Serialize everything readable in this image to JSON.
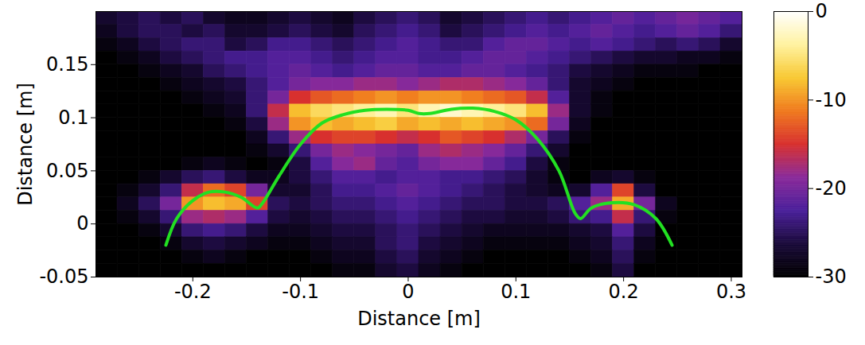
{
  "chart_data": {
    "type": "heatmap",
    "x_label": "Distance [m]",
    "y_label": "Distance [m]",
    "xlim": [
      -0.29,
      0.31
    ],
    "ylim": [
      -0.05,
      0.2
    ],
    "xticks": [
      -0.2,
      -0.1,
      0,
      0.1,
      0.2,
      0.3
    ],
    "yticks": [
      -0.05,
      0,
      0.05,
      0.1,
      0.15
    ],
    "x": [
      -0.28,
      -0.26,
      -0.24,
      -0.22,
      -0.2,
      -0.18,
      -0.16,
      -0.14,
      -0.12,
      -0.1,
      -0.08,
      -0.06,
      -0.04,
      -0.02,
      0,
      0.02,
      0.04,
      0.06,
      0.08,
      0.1,
      0.12,
      0.14,
      0.16,
      0.18,
      0.2,
      0.22,
      0.24,
      0.26,
      0.28,
      0.3
    ],
    "y": [
      0.19375,
      0.18125,
      0.16875,
      0.15625,
      0.14375,
      0.13125,
      0.11875,
      0.10625,
      0.09375,
      0.08125,
      0.06875,
      0.05625,
      0.04375,
      0.03125,
      0.01875,
      0.00625,
      -0.00625,
      -0.01875,
      -0.03125,
      -0.04375
    ],
    "values": [
      [
        -27,
        -26,
        -25,
        -26,
        -25,
        -27,
        -28,
        -28,
        -27,
        -26,
        -27,
        -28,
        -26,
        -25,
        -24,
        -25,
        -27,
        -26,
        -25,
        -24,
        -23,
        -24,
        -23,
        -22,
        -21,
        -22,
        -21,
        -20,
        -21,
        -22
      ],
      [
        -28,
        -26,
        -25,
        -25,
        -26,
        -25,
        -27,
        -27,
        -26,
        -25,
        -26,
        -27,
        -25,
        -24,
        -23,
        -24,
        -26,
        -25,
        -24,
        -23,
        -22,
        -23,
        -22,
        -21,
        -22,
        -23,
        -22,
        -21,
        -22,
        -24
      ],
      [
        -29,
        -28,
        -26,
        -25,
        -24,
        -24,
        -26,
        -25,
        -23,
        -23,
        -24,
        -25,
        -24,
        -23,
        -22,
        -23,
        -24,
        -24,
        -22,
        -21,
        -21,
        -22,
        -23,
        -22,
        -23,
        -24,
        -25,
        -24,
        -25,
        -27
      ],
      [
        -30,
        -29,
        -28,
        -26,
        -25,
        -24,
        -23,
        -23,
        -22,
        -22,
        -23,
        -24,
        -23,
        -22,
        -22,
        -23,
        -23,
        -22,
        -21,
        -21,
        -22,
        -23,
        -24,
        -25,
        -26,
        -27,
        -27,
        -28,
        -28,
        -29
      ],
      [
        -30,
        -30,
        -29,
        -28,
        -27,
        -25,
        -24,
        -23,
        -22,
        -21,
        -22,
        -23,
        -22,
        -21,
        -21,
        -22,
        -22,
        -21,
        -21,
        -22,
        -23,
        -24,
        -26,
        -27,
        -28,
        -29,
        -29,
        -29,
        -30,
        -30
      ],
      [
        -30,
        -30,
        -30,
        -29,
        -28,
        -27,
        -26,
        -24,
        -22,
        -20,
        -19,
        -19,
        -18,
        -18,
        -19,
        -18,
        -17,
        -17,
        -18,
        -19,
        -21,
        -24,
        -27,
        -28,
        -29,
        -30,
        -30,
        -30,
        -30,
        -30
      ],
      [
        -30,
        -30,
        -30,
        -30,
        -29,
        -28,
        -27,
        -24,
        -20,
        -15,
        -13,
        -12,
        -11,
        -10,
        -11,
        -10,
        -10,
        -11,
        -12,
        -13,
        -16,
        -22,
        -27,
        -29,
        -30,
        -30,
        -30,
        -30,
        -30,
        -30
      ],
      [
        -30,
        -30,
        -30,
        -30,
        -30,
        -29,
        -28,
        -24,
        -16,
        -8,
        -6,
        -5,
        -4,
        -3,
        -5,
        -3,
        -2,
        -3,
        -4,
        -5,
        -8,
        -18,
        -27,
        -29,
        -30,
        -30,
        -30,
        -30,
        -30,
        -30
      ],
      [
        -30,
        -30,
        -30,
        -30,
        -30,
        -30,
        -29,
        -26,
        -18,
        -10,
        -8,
        -9,
        -8,
        -7,
        -9,
        -8,
        -9,
        -8,
        -9,
        -10,
        -12,
        -20,
        -28,
        -30,
        -30,
        -30,
        -30,
        -30,
        -30,
        -30
      ],
      [
        -30,
        -30,
        -30,
        -30,
        -30,
        -30,
        -30,
        -28,
        -24,
        -18,
        -15,
        -14,
        -14,
        -15,
        -16,
        -15,
        -13,
        -14,
        -15,
        -17,
        -20,
        -25,
        -29,
        -30,
        -30,
        -30,
        -30,
        -30,
        -30,
        -30
      ],
      [
        -30,
        -30,
        -30,
        -30,
        -30,
        -30,
        -30,
        -29,
        -27,
        -24,
        -20,
        -18,
        -19,
        -20,
        -21,
        -18,
        -17,
        -18,
        -19,
        -21,
        -24,
        -27,
        -30,
        -30,
        -30,
        -30,
        -30,
        -30,
        -30,
        -30
      ],
      [
        -30,
        -30,
        -30,
        -30,
        -29,
        -28,
        -29,
        -30,
        -29,
        -26,
        -22,
        -19,
        -18,
        -21,
        -22,
        -20,
        -19,
        -19,
        -21,
        -23,
        -26,
        -29,
        -30,
        -30,
        -30,
        -30,
        -30,
        -30,
        -30,
        -30
      ],
      [
        -30,
        -30,
        -29,
        -27,
        -25,
        -24,
        -26,
        -28,
        -28,
        -26,
        -24,
        -22,
        -22,
        -23,
        -22,
        -22,
        -23,
        -23,
        -24,
        -25,
        -27,
        -29,
        -30,
        -28,
        -27,
        -29,
        -30,
        -30,
        -30,
        -30
      ],
      [
        -30,
        -29,
        -27,
        -24,
        -16,
        -12,
        -14,
        -20,
        -27,
        -27,
        -25,
        -23,
        -23,
        -22,
        -21,
        -22,
        -23,
        -24,
        -25,
        -26,
        -27,
        -28,
        -27,
        -22,
        -14,
        -26,
        -30,
        -30,
        -30,
        -30
      ],
      [
        -30,
        -28,
        -25,
        -20,
        -10,
        -8,
        -9,
        -14,
        -25,
        -26,
        -25,
        -24,
        -24,
        -23,
        -22,
        -23,
        -24,
        -25,
        -25,
        -26,
        -26,
        -25,
        -22,
        -18,
        -9,
        -20,
        -28,
        -30,
        -30,
        -30
      ],
      [
        -30,
        -29,
        -27,
        -24,
        -18,
        -17,
        -18,
        -22,
        -26,
        -27,
        -26,
        -25,
        -25,
        -24,
        -23,
        -24,
        -25,
        -26,
        -26,
        -27,
        -27,
        -26,
        -24,
        -23,
        -16,
        -24,
        -29,
        -30,
        -30,
        -30
      ],
      [
        -30,
        -30,
        -29,
        -27,
        -24,
        -23,
        -24,
        -26,
        -28,
        -28,
        -27,
        -26,
        -26,
        -25,
        -24,
        -25,
        -26,
        -27,
        -28,
        -28,
        -28,
        -28,
        -27,
        -26,
        -22,
        -26,
        -30,
        -30,
        -30,
        -30
      ],
      [
        -30,
        -30,
        -30,
        -29,
        -27,
        -26,
        -27,
        -28,
        -29,
        -29,
        -28,
        -27,
        -27,
        -25,
        -24,
        -26,
        -27,
        -28,
        -29,
        -29,
        -29,
        -29,
        -28,
        -27,
        -24,
        -28,
        -30,
        -30,
        -30,
        -30
      ],
      [
        -30,
        -30,
        -30,
        -30,
        -29,
        -28,
        -29,
        -30,
        -30,
        -30,
        -29,
        -28,
        -28,
        -26,
        -25,
        -27,
        -28,
        -29,
        -30,
        -30,
        -30,
        -30,
        -29,
        -28,
        -25,
        -29,
        -30,
        -30,
        -30,
        -30
      ],
      [
        -30,
        -30,
        -30,
        -30,
        -30,
        -30,
        -30,
        -30,
        -30,
        -30,
        -30,
        -29,
        -29,
        -27,
        -26,
        -28,
        -29,
        -30,
        -30,
        -30,
        -30,
        -30,
        -30,
        -29,
        -26,
        -30,
        -30,
        -30,
        -30,
        -30
      ]
    ],
    "colorbar": {
      "range": [
        -30,
        0
      ],
      "ticks": [
        0,
        -10,
        -20,
        -30
      ]
    },
    "contour": {
      "color": "#22e022",
      "x": [
        -0.225,
        -0.215,
        -0.2,
        -0.185,
        -0.17,
        -0.155,
        -0.14,
        -0.135,
        -0.12,
        -0.1,
        -0.08,
        -0.06,
        -0.04,
        -0.02,
        0,
        0.01,
        0.02,
        0.04,
        0.06,
        0.08,
        0.1,
        0.12,
        0.14,
        0.155,
        0.16,
        0.17,
        0.19,
        0.21,
        0.23,
        0.245
      ],
      "y": [
        -0.02,
        0.005,
        0.022,
        0.03,
        0.03,
        0.025,
        0.015,
        0.02,
        0.045,
        0.075,
        0.095,
        0.103,
        0.107,
        0.108,
        0.107,
        0.104,
        0.104,
        0.108,
        0.109,
        0.106,
        0.098,
        0.08,
        0.05,
        0.01,
        0.005,
        0.015,
        0.02,
        0.018,
        0.005,
        -0.02
      ]
    }
  }
}
